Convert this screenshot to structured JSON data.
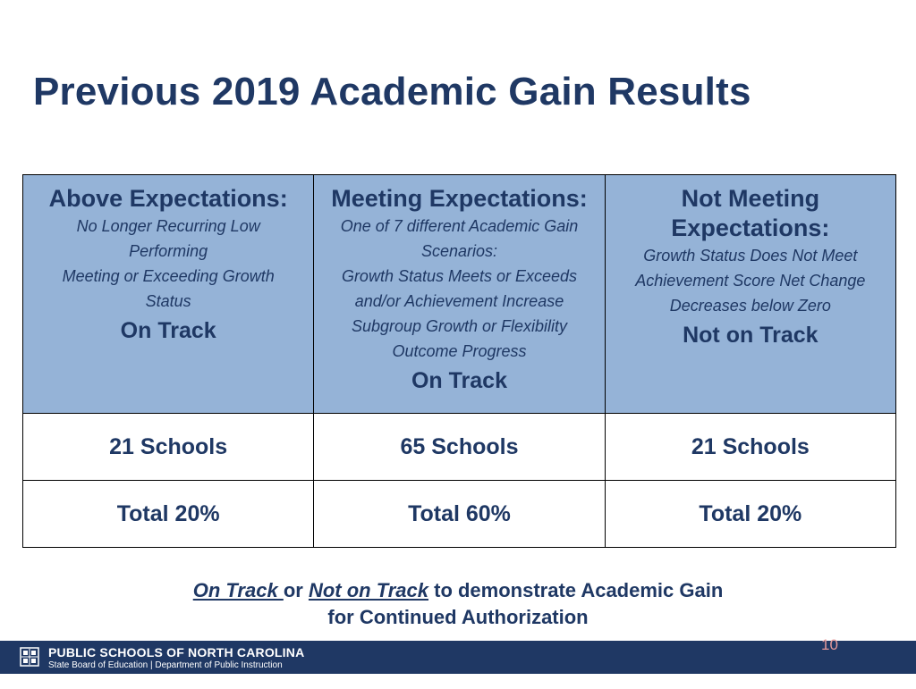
{
  "slide": {
    "title": "Previous 2019 Academic Gain Results",
    "page_number": "10"
  },
  "table": {
    "columns": [
      {
        "category_lines": [
          "Above Expectations:"
        ],
        "description_lines": [
          "No Longer Recurring Low",
          "Performing",
          "Meeting or Exceeding Growth",
          "Status"
        ],
        "status": "On Track",
        "count": "21 Schools",
        "total": "Total 20%"
      },
      {
        "category_lines": [
          "Meeting Expectations:"
        ],
        "description_lines": [
          "One of 7 different Academic Gain",
          "Scenarios:",
          "Growth Status Meets or Exceeds",
          "and/or Achievement Increase",
          "Subgroup Growth or Flexibility",
          "Outcome Progress"
        ],
        "status": "On Track",
        "count": "65 Schools",
        "total": "Total 60%"
      },
      {
        "category_lines": [
          "Not Meeting",
          "Expectations:"
        ],
        "description_lines": [
          "Growth Status Does Not Meet",
          "Achievement Score Net Change",
          "Decreases below Zero"
        ],
        "status": "Not on Track",
        "count": "21 Schools",
        "total": "Total 20%"
      }
    ]
  },
  "note": {
    "on_track": "On Track ",
    "or": "or ",
    "not_on_track": "Not on Track",
    "rest_line1": " to demonstrate Academic Gain",
    "line2": "for Continued Authorization"
  },
  "footer": {
    "org_name": "PUBLIC SCHOOLS OF NORTH CAROLINA",
    "org_sub": "State Board of Education | Department of Public Instruction",
    "logo_icon": "nc-dpi-logo-icon"
  },
  "colors": {
    "navy": "#1f3864",
    "header_fill": "#95b3d7",
    "page_number": "#e59a9a"
  }
}
